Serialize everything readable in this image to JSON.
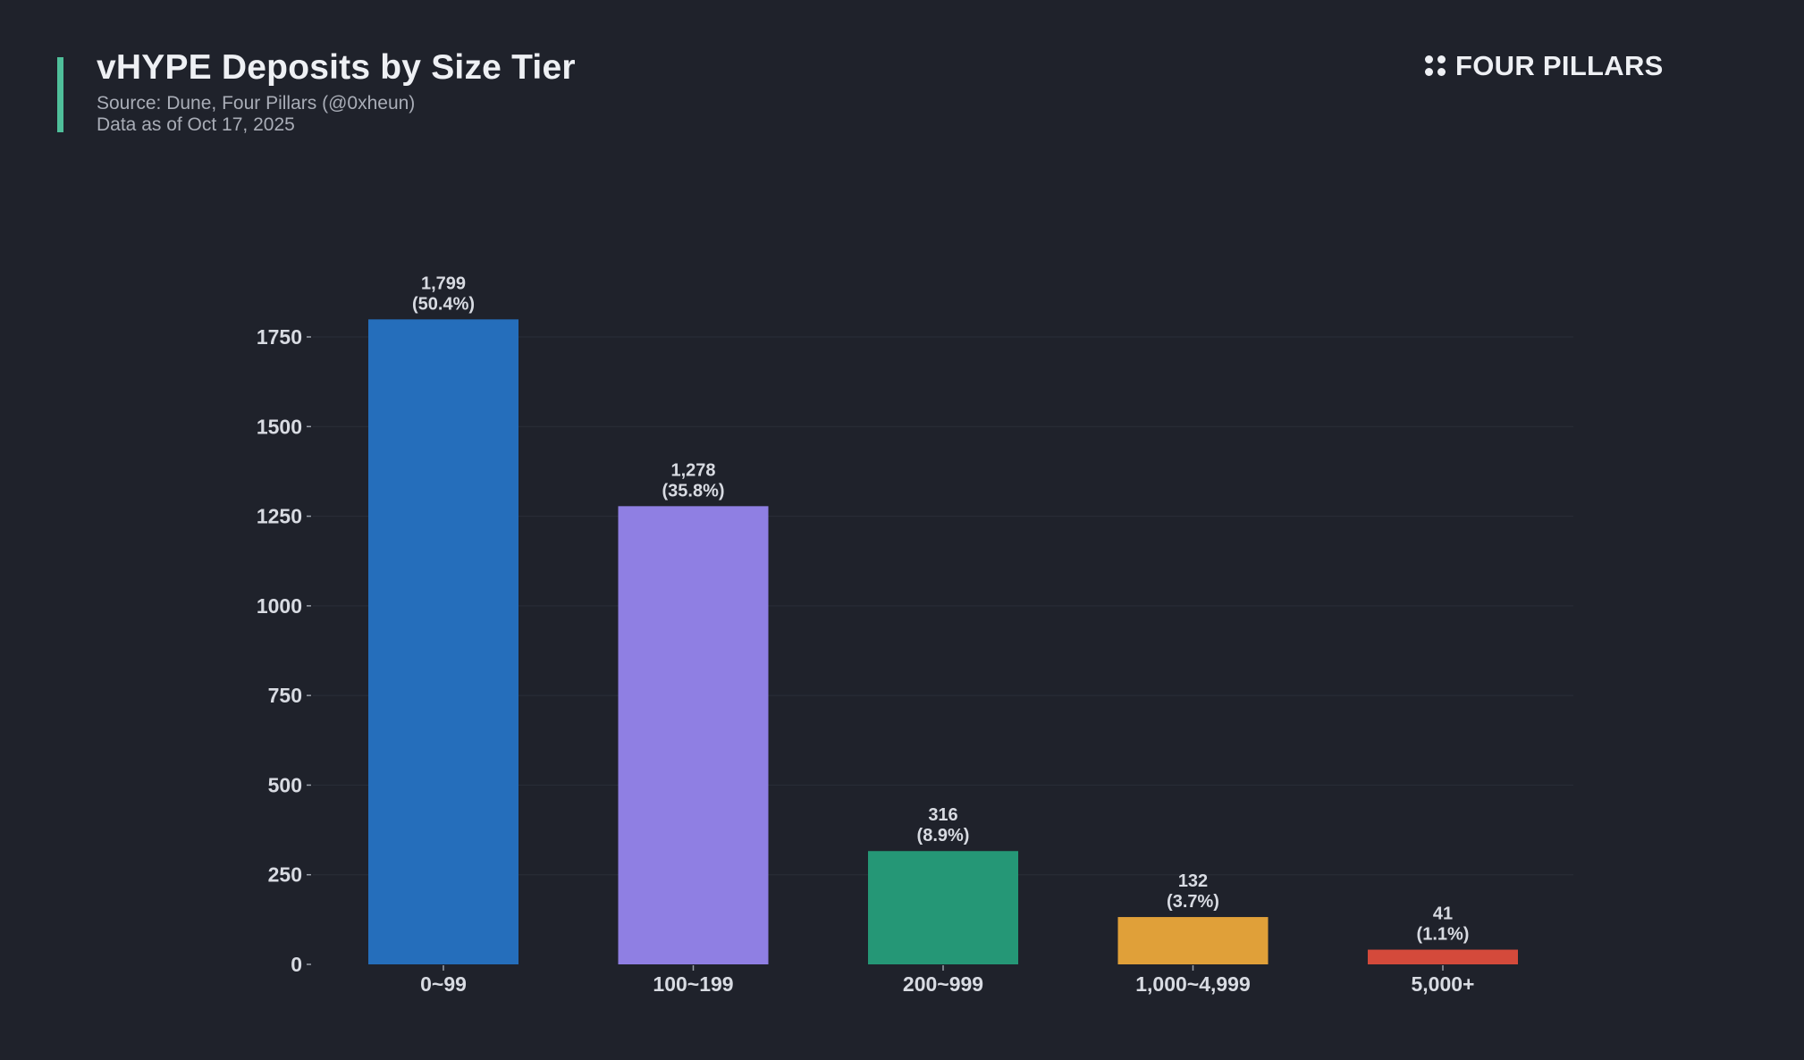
{
  "header": {
    "title": "vHYPE Deposits by Size Tier",
    "source": "Source: Dune, Four Pillars (@0xheun)",
    "date": "Data as of Oct 17, 2025",
    "accent_color": "#4fbf9a"
  },
  "brand": {
    "icon": "four-dots-icon",
    "name": "FOUR PILLARS"
  },
  "chart_data": {
    "type": "bar",
    "title": "vHYPE Deposits by Size Tier",
    "xlabel": "",
    "ylabel": "",
    "categories": [
      "0~99",
      "100~199",
      "200~999",
      "1,000~4,999",
      "5,000+"
    ],
    "values": [
      1799,
      1278,
      316,
      132,
      41
    ],
    "value_labels": [
      "1,799",
      "1,278",
      "316",
      "132",
      "41"
    ],
    "percent_labels": [
      "(50.4%)",
      "(35.8%)",
      "(8.9%)",
      "(3.7%)",
      "(1.1%)"
    ],
    "colors": [
      "#256ebb",
      "#8f7fe3",
      "#259776",
      "#e0a039",
      "#d44a3b"
    ],
    "ylim": [
      0,
      1800
    ],
    "yticks": [
      0,
      250,
      500,
      750,
      1000,
      1250,
      1500,
      1750
    ],
    "grid": true,
    "legend": "none"
  }
}
